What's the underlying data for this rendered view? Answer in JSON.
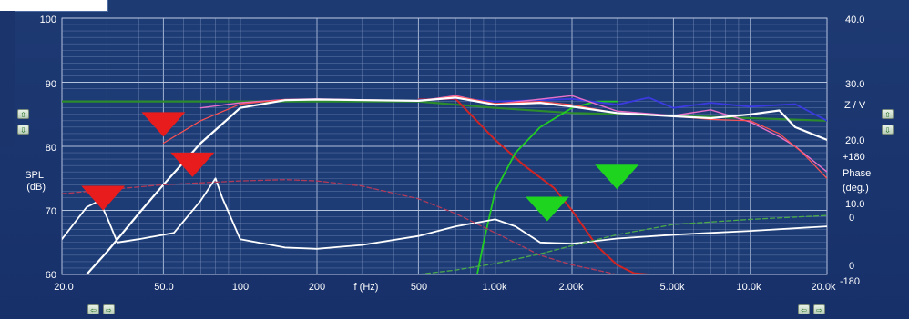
{
  "chart_data": {
    "type": "line",
    "x_axis": {
      "label": "f (Hz)",
      "scale": "log",
      "range": [
        20,
        20000
      ],
      "tick_labels": [
        "20.0",
        "50.0",
        "100",
        "200",
        "500",
        "1.00k",
        "2.00k",
        "5.00k",
        "10.0k",
        "20.0k"
      ]
    },
    "y_left": {
      "label_lines": [
        "SPL",
        "(dB)"
      ],
      "range": [
        60,
        100
      ],
      "tick_labels": [
        "60",
        "70",
        "80",
        "90",
        "100"
      ]
    },
    "y_right_impedance": {
      "label": "Z / V",
      "tick_labels": [
        "0",
        "10.0",
        "20.0",
        "30.0",
        "40.0"
      ]
    },
    "y_right_phase": {
      "label_lines": [
        "Phase",
        "(deg.)"
      ],
      "tick_labels": [
        "+180",
        "0",
        "-180"
      ]
    },
    "grid": true,
    "series": [
      {
        "color": "#2c8c2c",
        "width": 2.2,
        "dash": "",
        "x": [
          20,
          30,
          50,
          100,
          200,
          500,
          1000,
          2000,
          5000,
          10000,
          20000
        ],
        "y": [
          87,
          87,
          87,
          87,
          87,
          87,
          86,
          85.2,
          84.8,
          84.4,
          84
        ]
      },
      {
        "color": "#d02424",
        "width": 2,
        "dash": "",
        "x": [
          500,
          700,
          800,
          1000,
          1300,
          1700,
          2000,
          2500,
          3000,
          3500,
          4000
        ],
        "y": [
          87.3,
          87.4,
          85,
          81,
          77,
          73.5,
          70,
          64.5,
          61.5,
          60.2,
          60
        ]
      },
      {
        "color": "#22cc22",
        "width": 1.8,
        "dash": "",
        "x": [
          850,
          900,
          1000,
          1200,
          1500,
          2000,
          2500,
          3000
        ],
        "y": [
          60,
          65,
          73,
          79,
          83,
          86,
          87,
          87
        ]
      },
      {
        "color": "#3a3ae0",
        "width": 1.8,
        "dash": "",
        "x": [
          500,
          700,
          1000,
          1500,
          2000,
          3000,
          4000,
          5000,
          7000,
          10000,
          15000,
          20000
        ],
        "y": [
          87.2,
          87.5,
          87,
          87.2,
          87.4,
          86.5,
          87.6,
          86,
          86.8,
          86.2,
          86.6,
          84
        ]
      },
      {
        "color": "#e870c8",
        "width": 1.4,
        "dash": "",
        "x": [
          70,
          100,
          150,
          200,
          500,
          700,
          1000,
          2000,
          3000,
          5000,
          7000,
          10000,
          13000,
          15000,
          20000
        ],
        "y": [
          86,
          86.8,
          87.3,
          87.4,
          87.1,
          87.9,
          86.6,
          87.9,
          85.5,
          84.8,
          85.7,
          83.8,
          81.5,
          80,
          76
        ]
      },
      {
        "color": "#ff5050",
        "width": 1.2,
        "dash": "",
        "x": [
          50,
          70,
          100,
          150,
          200,
          500,
          700,
          1000,
          1500,
          2000,
          3000,
          5000,
          7000,
          10000,
          13000,
          16000,
          20000
        ],
        "y": [
          80.5,
          84,
          86.6,
          87.3,
          87.3,
          87.1,
          87.8,
          86.7,
          87,
          86.5,
          85.2,
          84.7,
          84.2,
          84,
          82,
          79,
          75
        ]
      },
      {
        "color": "#ffffff",
        "width": 2.2,
        "dash": "",
        "x": [
          25,
          30,
          40,
          50,
          70,
          100,
          150,
          200,
          500,
          700,
          1000,
          1500,
          2000,
          3000,
          5000,
          7000,
          10000,
          13000,
          15000,
          20000
        ],
        "y": [
          60,
          63.5,
          69.5,
          74,
          80.5,
          86,
          87.2,
          87.3,
          87.1,
          87.6,
          86.5,
          86.8,
          86.2,
          85.2,
          84.7,
          84.4,
          85,
          85.6,
          83,
          81
        ]
      },
      {
        "color": "#ffffff",
        "width": 1.8,
        "dash": "",
        "x": [
          20,
          25,
          28,
          30,
          33,
          40,
          55,
          70,
          80,
          85,
          100,
          150,
          200,
          300,
          500,
          700,
          1000,
          1200,
          1500,
          2000,
          3000,
          5000,
          10000,
          20000
        ],
        "y": [
          65.5,
          70.5,
          71.5,
          69,
          65,
          65.5,
          66.5,
          71.5,
          75,
          72,
          65.5,
          64.2,
          64,
          64.6,
          66,
          67.5,
          68.6,
          67.5,
          65,
          64.8,
          65.6,
          66.2,
          66.8,
          67.5
        ]
      },
      {
        "color": "#b23a5a",
        "width": 1.3,
        "dash": "5,3",
        "x": [
          20,
          50,
          100,
          150,
          200,
          300,
          500,
          700,
          1000,
          1500,
          2000,
          3000
        ],
        "y": [
          72.6,
          74,
          74.6,
          74.8,
          74.6,
          73.8,
          71.8,
          69.5,
          66.5,
          63,
          61.5,
          60
        ]
      },
      {
        "color": "#4aa84a",
        "width": 1.3,
        "dash": "5,3",
        "x": [
          500,
          700,
          1000,
          1500,
          2000,
          3000,
          5000,
          10000,
          20000
        ],
        "y": [
          60,
          60.7,
          61.7,
          63.2,
          64.5,
          66.2,
          67.8,
          68.6,
          69.2
        ]
      }
    ],
    "markers": [
      {
        "color": "#e81c1c",
        "direction": "down",
        "x": 29,
        "y": 70
      },
      {
        "color": "#e81c1c",
        "direction": "down",
        "x": 50,
        "y": 81.5
      },
      {
        "color": "#e81c1c",
        "direction": "down",
        "x": 65,
        "y": 75.2
      },
      {
        "color": "#1ed41e",
        "direction": "down",
        "x": 1600,
        "y": 68.3
      },
      {
        "color": "#1ed41e",
        "direction": "down",
        "x": 3000,
        "y": 73.3
      }
    ]
  },
  "buttons": {
    "up": "⇧",
    "down": "⇩",
    "left": "⇦",
    "right": "⇨"
  }
}
